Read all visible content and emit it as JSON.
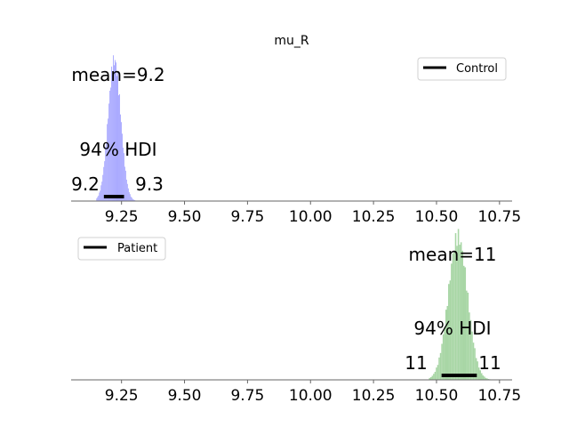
{
  "title": "mu_R",
  "chart_data": [
    {
      "type": "histogram",
      "title": "mu_R",
      "xlim": [
        9.05,
        10.8
      ],
      "xticks": [
        "9.25",
        "9.50",
        "9.75",
        "10.00",
        "10.25",
        "10.50",
        "10.75"
      ],
      "xtick_values": [
        9.25,
        9.5,
        9.75,
        10.0,
        10.25,
        10.5,
        10.75
      ],
      "legend": {
        "label": "Control",
        "placement": "top-right"
      },
      "color": "#aaaaff",
      "mean_label": "mean=9.2",
      "hdi_title": "94% HDI",
      "hdi_low_label": "9.2",
      "hdi_high_label": "9.3",
      "hdi": [
        9.18,
        9.26
      ],
      "distribution": {
        "mean": 9.222,
        "sd": 0.025,
        "min": 9.15,
        "max": 9.31
      }
    },
    {
      "type": "histogram",
      "xlim": [
        9.05,
        10.8
      ],
      "xticks": [
        "9.25",
        "9.50",
        "9.75",
        "10.00",
        "10.25",
        "10.50",
        "10.75"
      ],
      "xtick_values": [
        9.25,
        9.5,
        9.75,
        10.0,
        10.25,
        10.5,
        10.75
      ],
      "legend": {
        "label": "Patient",
        "placement": "top-left"
      },
      "color": "#a8d6a5",
      "mean_label": "mean=11",
      "hdi_title": "94% HDI",
      "hdi_low_label": "11",
      "hdi_high_label": "11",
      "hdi": [
        10.52,
        10.66
      ],
      "distribution": {
        "mean": 10.585,
        "sd": 0.038,
        "min": 10.47,
        "max": 10.72
      }
    }
  ]
}
